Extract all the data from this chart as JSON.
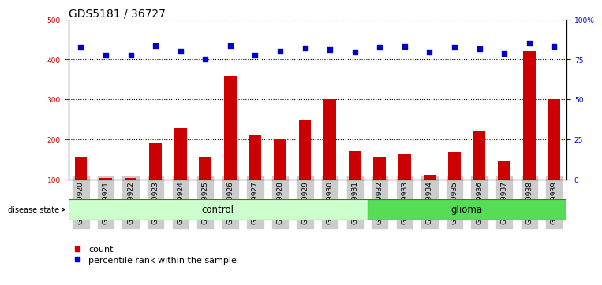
{
  "title": "GDS5181 / 36727",
  "samples": [
    "GSM769920",
    "GSM769921",
    "GSM769922",
    "GSM769923",
    "GSM769924",
    "GSM769925",
    "GSM769926",
    "GSM769927",
    "GSM769928",
    "GSM769929",
    "GSM769930",
    "GSM769931",
    "GSM769932",
    "GSM769933",
    "GSM769934",
    "GSM769935",
    "GSM769936",
    "GSM769937",
    "GSM769938",
    "GSM769939"
  ],
  "counts": [
    155,
    105,
    105,
    190,
    230,
    157,
    360,
    210,
    202,
    250,
    300,
    170,
    158,
    165,
    112,
    168,
    220,
    145,
    420,
    300
  ],
  "percentile_ranks_pct": [
    82.5,
    77.5,
    77.5,
    83.75,
    80.0,
    75.0,
    83.75,
    77.5,
    80.0,
    82.0,
    81.25,
    79.5,
    82.5,
    83.25,
    79.5,
    82.5,
    81.75,
    78.75,
    85.0,
    83.0
  ],
  "control_count": 12,
  "left_ylim": [
    100,
    500
  ],
  "right_ylim": [
    0,
    100
  ],
  "left_yticks": [
    100,
    200,
    300,
    400,
    500
  ],
  "right_yticks": [
    0,
    25,
    50,
    75,
    100
  ],
  "right_yticklabels": [
    "0",
    "25",
    "50",
    "75",
    "100%"
  ],
  "bar_color": "#cc0000",
  "dot_color": "#0000cc",
  "control_bg": "#ccffcc",
  "glioma_bg": "#55dd55",
  "sample_bg": "#cccccc",
  "grid_color": "#000000",
  "title_fontsize": 10,
  "tick_fontsize": 6.5,
  "legend_fontsize": 8,
  "bar_width": 0.5,
  "dot_marker": "s",
  "dot_size": 18
}
